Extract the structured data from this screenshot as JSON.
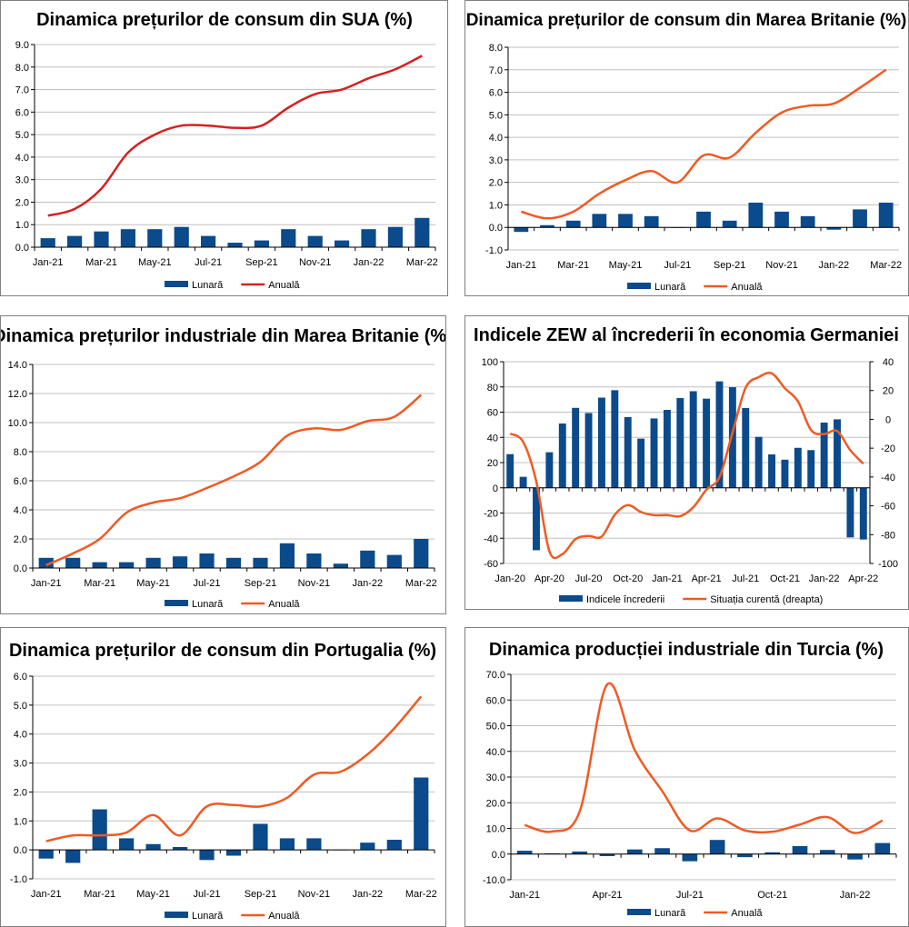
{
  "colors": {
    "bar": "#0b4a8b",
    "line_red": "#d62020",
    "line_orange": "#f05a23",
    "grid": "#c0c0c0"
  },
  "chart_data": [
    {
      "type": "bar+line",
      "title": "Dinamica prețurilor de consum din SUA (%)",
      "categories": [
        "Jan-21",
        "Feb-21",
        "Mar-21",
        "Apr-21",
        "May-21",
        "Jun-21",
        "Jul-21",
        "Aug-21",
        "Sep-21",
        "Oct-21",
        "Nov-21",
        "Dec-21",
        "Jan-22",
        "Feb-22",
        "Mar-22"
      ],
      "xtick_labels": [
        "Jan-21",
        "Mar-21",
        "May-21",
        "Jul-21",
        "Sep-21",
        "Nov-21",
        "Jan-22",
        "Mar-22"
      ],
      "ylim": [
        0,
        9
      ],
      "yticks": [
        0,
        1,
        2,
        3,
        4,
        5,
        6,
        7,
        8,
        9
      ],
      "ytick_labels": [
        "0.0",
        "1.0",
        "2.0",
        "3.0",
        "4.0",
        "5.0",
        "6.0",
        "7.0",
        "8.0",
        "9.0"
      ],
      "series": [
        {
          "name": "Lunară",
          "kind": "bar",
          "color": "#0b4a8b",
          "values": [
            0.4,
            0.5,
            0.7,
            0.8,
            0.8,
            0.9,
            0.5,
            0.2,
            0.3,
            0.8,
            0.5,
            0.3,
            0.8,
            0.9,
            1.3
          ]
        },
        {
          "name": "Anuală",
          "kind": "line",
          "color": "#d62020",
          "values": [
            1.4,
            1.7,
            2.6,
            4.2,
            5.0,
            5.4,
            5.4,
            5.3,
            5.4,
            6.2,
            6.8,
            7.0,
            7.5,
            7.9,
            8.5
          ]
        }
      ],
      "legend": "bottom"
    },
    {
      "type": "bar+line",
      "title": "Dinamica prețurilor de consum din Marea Britanie (%)",
      "categories": [
        "Jan-21",
        "Feb-21",
        "Mar-21",
        "Apr-21",
        "May-21",
        "Jun-21",
        "Jul-21",
        "Aug-21",
        "Sep-21",
        "Oct-21",
        "Nov-21",
        "Dec-21",
        "Jan-22",
        "Feb-22",
        "Mar-22"
      ],
      "xtick_labels": [
        "Jan-21",
        "Mar-21",
        "May-21",
        "Jul-21",
        "Sep-21",
        "Nov-21",
        "Jan-22",
        "Mar-22"
      ],
      "ylim": [
        -1,
        8
      ],
      "yticks": [
        -1,
        0,
        1,
        2,
        3,
        4,
        5,
        6,
        7,
        8
      ],
      "ytick_labels": [
        "-1.0",
        "0.0",
        "1.0",
        "2.0",
        "3.0",
        "4.0",
        "5.0",
        "6.0",
        "7.0",
        "8.0"
      ],
      "series": [
        {
          "name": "Lunară",
          "kind": "bar",
          "color": "#0b4a8b",
          "values": [
            -0.2,
            0.1,
            0.3,
            0.6,
            0.6,
            0.5,
            0.0,
            0.7,
            0.3,
            1.1,
            0.7,
            0.5,
            -0.1,
            0.8,
            1.1
          ]
        },
        {
          "name": "Anuală",
          "kind": "line",
          "color": "#f05a23",
          "values": [
            0.7,
            0.4,
            0.7,
            1.5,
            2.1,
            2.5,
            2.0,
            3.2,
            3.1,
            4.2,
            5.1,
            5.4,
            5.5,
            6.2,
            7.0
          ]
        }
      ],
      "legend": "bottom"
    },
    {
      "type": "bar+line",
      "title": "Dinamica prețurilor industriale din Marea Britanie (%)",
      "categories": [
        "Jan-21",
        "Feb-21",
        "Mar-21",
        "Apr-21",
        "May-21",
        "Jun-21",
        "Jul-21",
        "Aug-21",
        "Sep-21",
        "Oct-21",
        "Nov-21",
        "Dec-21",
        "Jan-22",
        "Feb-22",
        "Mar-22"
      ],
      "xtick_labels": [
        "Jan-21",
        "Mar-21",
        "May-21",
        "Jul-21",
        "Sep-21",
        "Nov-21",
        "Jan-22",
        "Mar-22"
      ],
      "ylim": [
        0,
        14
      ],
      "yticks": [
        0,
        2,
        4,
        6,
        8,
        10,
        12,
        14
      ],
      "ytick_labels": [
        "0.0",
        "2.0",
        "4.0",
        "6.0",
        "8.0",
        "10.0",
        "12.0",
        "14.0"
      ],
      "series": [
        {
          "name": "Lunară",
          "kind": "bar",
          "color": "#0b4a8b",
          "values": [
            0.7,
            0.7,
            0.4,
            0.4,
            0.7,
            0.8,
            1.0,
            0.7,
            0.7,
            1.7,
            1.0,
            0.3,
            1.2,
            0.9,
            2.0
          ]
        },
        {
          "name": "Anuală",
          "kind": "line",
          "color": "#f05a23",
          "values": [
            0.2,
            1.0,
            2.0,
            3.8,
            4.5,
            4.8,
            5.5,
            6.3,
            7.3,
            9.1,
            9.6,
            9.5,
            10.1,
            10.4,
            11.9
          ]
        }
      ],
      "legend": "bottom"
    },
    {
      "type": "bar+line",
      "title": "Indicele ZEW al încrederii în economia Germaniei",
      "categories": [
        "Jan-20",
        "Feb-20",
        "Mar-20",
        "Apr-20",
        "May-20",
        "Jun-20",
        "Jul-20",
        "Aug-20",
        "Sep-20",
        "Oct-20",
        "Nov-20",
        "Dec-20",
        "Jan-21",
        "Feb-21",
        "Mar-21",
        "Apr-21",
        "May-21",
        "Jun-21",
        "Jul-21",
        "Aug-21",
        "Sep-21",
        "Oct-21",
        "Nov-21",
        "Dec-21",
        "Jan-22",
        "Feb-22",
        "Mar-22",
        "Apr-22"
      ],
      "xtick_labels": [
        "Jan-20",
        "Apr-20",
        "Jul-20",
        "Oct-20",
        "Jan-21",
        "Apr-21",
        "Jul-21",
        "Oct-21",
        "Jan-22",
        "Apr-22"
      ],
      "ylim": [
        -60,
        100
      ],
      "yticks": [
        -60,
        -40,
        -20,
        0,
        20,
        40,
        60,
        80,
        100
      ],
      "ytick_labels": [
        "-60",
        "-40",
        "-20",
        "0",
        "20",
        "40",
        "60",
        "80",
        "100"
      ],
      "y2lim": [
        -100,
        40
      ],
      "y2ticks": [
        -100,
        -80,
        -60,
        -40,
        -20,
        0,
        20,
        40
      ],
      "y2tick_labels": [
        "-100",
        "-80",
        "-60",
        "-40",
        "-20",
        "0",
        "20",
        "40"
      ],
      "series": [
        {
          "name": "Indicele încrederii",
          "kind": "bar",
          "color": "#0b4a8b",
          "axis": "left",
          "values": [
            26.7,
            8.7,
            -49.5,
            28.2,
            51.0,
            63.4,
            59.3,
            71.5,
            77.4,
            56.1,
            39.0,
            55.0,
            61.8,
            71.2,
            76.6,
            70.7,
            84.4,
            79.8,
            63.3,
            40.4,
            26.5,
            22.3,
            31.7,
            29.9,
            51.7,
            54.3,
            -39.3,
            -41.0
          ]
        },
        {
          "name": "Situația curentă (dreapta)",
          "kind": "line",
          "color": "#f05a23",
          "axis": "right",
          "values": [
            -9.9,
            -15.7,
            -43.1,
            -91.5,
            -93.5,
            -83.1,
            -80.9,
            -81.3,
            -66.2,
            -59.5,
            -64.3,
            -66.5,
            -66.4,
            -67.2,
            -61.0,
            -48.8,
            -40.1,
            -9.1,
            21.9,
            29.3,
            31.9,
            21.6,
            12.5,
            -7.4,
            -10.2,
            -8.1,
            -21.4,
            -30.8
          ]
        }
      ],
      "legend": "bottom"
    },
    {
      "type": "bar+line",
      "title": "Dinamica prețurilor de consum din Portugalia (%)",
      "categories": [
        "Jan-21",
        "Feb-21",
        "Mar-21",
        "Apr-21",
        "May-21",
        "Jun-21",
        "Jul-21",
        "Aug-21",
        "Sep-21",
        "Oct-21",
        "Nov-21",
        "Dec-21",
        "Jan-22",
        "Feb-22",
        "Mar-22"
      ],
      "xtick_labels": [
        "Jan-21",
        "Mar-21",
        "May-21",
        "Jul-21",
        "Sep-21",
        "Nov-21",
        "Jan-22",
        "Mar-22"
      ],
      "ylim": [
        -1,
        6
      ],
      "yticks": [
        -1,
        0,
        1,
        2,
        3,
        4,
        5,
        6
      ],
      "ytick_labels": [
        "-1.0",
        "0.0",
        "1.0",
        "2.0",
        "3.0",
        "4.0",
        "5.0",
        "6.0"
      ],
      "series": [
        {
          "name": "Lunară",
          "kind": "bar",
          "color": "#0b4a8b",
          "values": [
            -0.3,
            -0.45,
            1.4,
            0.4,
            0.2,
            0.1,
            -0.35,
            -0.2,
            0.9,
            0.4,
            0.4,
            0.0,
            0.25,
            0.35,
            2.5
          ]
        },
        {
          "name": "Anuală",
          "kind": "line",
          "color": "#f05a23",
          "values": [
            0.3,
            0.5,
            0.5,
            0.6,
            1.2,
            0.5,
            1.5,
            1.55,
            1.5,
            1.8,
            2.6,
            2.7,
            3.3,
            4.2,
            5.3
          ]
        }
      ],
      "legend": "bottom"
    },
    {
      "type": "bar+line",
      "title": "Dinamica producției industriale din Turcia (%)",
      "categories": [
        "Jan-21",
        "Feb-21",
        "Mar-21",
        "Apr-21",
        "May-21",
        "Jun-21",
        "Jul-21",
        "Aug-21",
        "Sep-21",
        "Oct-21",
        "Nov-21",
        "Dec-21",
        "Jan-22",
        "Feb-22"
      ],
      "xtick_labels": [
        "Jan-21",
        "Apr-21",
        "Jul-21",
        "Oct-21",
        "Jan-22"
      ],
      "ylim": [
        -10,
        70
      ],
      "yticks": [
        -10,
        0,
        10,
        20,
        30,
        40,
        50,
        60,
        70
      ],
      "ytick_labels": [
        "-10.0",
        "0.0",
        "10.0",
        "20.0",
        "30.0",
        "40.0",
        "50.0",
        "60.0",
        "70.0"
      ],
      "series": [
        {
          "name": "Lunară",
          "kind": "bar",
          "color": "#0b4a8b",
          "values": [
            1.3,
            0.3,
            1.0,
            -0.8,
            1.8,
            2.3,
            -2.8,
            5.5,
            -1.2,
            0.7,
            3.1,
            1.6,
            -2.1,
            4.3
          ]
        },
        {
          "name": "Anuală",
          "kind": "line",
          "color": "#f05a23",
          "values": [
            11.3,
            8.8,
            16.6,
            66.1,
            40.5,
            24.5,
            9.2,
            13.9,
            9.2,
            8.7,
            11.5,
            14.4,
            8.2,
            13.1
          ]
        }
      ],
      "legend": "bottom"
    }
  ]
}
